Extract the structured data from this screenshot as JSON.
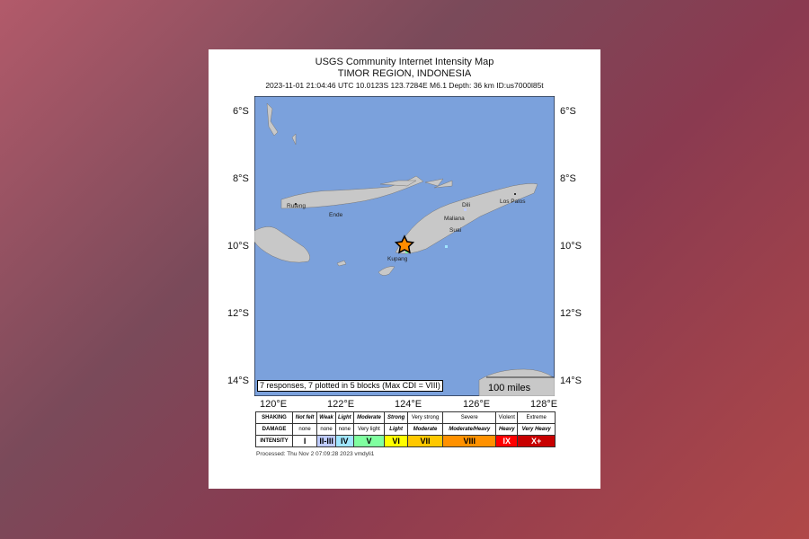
{
  "title": "USGS Community Internet Intensity Map",
  "region": "TIMOR REGION, INDONESIA",
  "event_line": "2023-11-01 21:04:46 UTC 10.0123S 123.7284E M6.1 Depth: 36 km ID:us7000l85t",
  "lat_labels": [
    "6°S",
    "8°S",
    "10°S",
    "12°S",
    "14°S"
  ],
  "lon_labels": [
    "120°E",
    "122°E",
    "124°E",
    "126°E",
    "128°E"
  ],
  "cities": [
    "Ruteng",
    "Ende",
    "Dili",
    "Los Palos",
    "Maliana",
    "Suai",
    "Kupang"
  ],
  "responses": "7 responses, 7 plotted in 5 blocks (Max CDI = VIII)",
  "scale": "100 miles",
  "epicenter_icon": "star-icon",
  "legend": {
    "shaking_label": "SHAKING",
    "damage_label": "DAMAGE",
    "intensity_label": "INTENSITY",
    "shaking": [
      "Not felt",
      "Weak",
      "Light",
      "Moderate",
      "Strong",
      "Very strong",
      "Severe",
      "Violent",
      "Extreme"
    ],
    "damage": [
      "none",
      "none",
      "none",
      "Very light",
      "Light",
      "Moderate",
      "Moderate/Heavy",
      "Heavy",
      "Very Heavy"
    ],
    "intensity": [
      "I",
      "II-III",
      "IV",
      "V",
      "VI",
      "VII",
      "VIII",
      "IX",
      "X+"
    ],
    "colors": [
      "#ffffff",
      "#bfccff",
      "#a0e6ff",
      "#80ffa0",
      "#ffff00",
      "#ffc800",
      "#ff9100",
      "#ff0000",
      "#c80000"
    ]
  },
  "processed": "Processed: Thu Nov  2 07:09:28 2023 vmdyli1",
  "ocean_color": "#7ba1dc"
}
